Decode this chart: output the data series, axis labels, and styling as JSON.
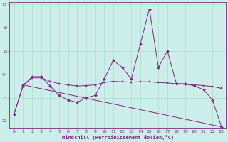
{
  "xlabel": "Windchill (Refroidissement éolien,°C)",
  "background_color": "#cceee8",
  "line_color": "#882288",
  "grid_color": "#aaddcc",
  "xlim": [
    -0.5,
    23.5
  ],
  "ylim": [
    11.7,
    17.1
  ],
  "yticks": [
    12,
    13,
    14,
    15,
    16,
    17
  ],
  "xticks": [
    0,
    1,
    2,
    3,
    4,
    5,
    6,
    7,
    8,
    9,
    10,
    11,
    12,
    13,
    14,
    15,
    16,
    17,
    18,
    19,
    20,
    21,
    22,
    23
  ],
  "series_zigzag": {
    "x": [
      0,
      1,
      2,
      3,
      4,
      5,
      6,
      7,
      8,
      9,
      10,
      11,
      12,
      13,
      14,
      15,
      16,
      17,
      18,
      19,
      20,
      21,
      22,
      23
    ],
    "y": [
      12.3,
      13.5,
      13.9,
      13.9,
      13.5,
      13.1,
      12.9,
      12.8,
      13.0,
      13.1,
      13.8,
      14.6,
      14.3,
      13.8,
      15.3,
      16.8,
      14.3,
      15.0,
      13.6,
      13.6,
      13.5,
      13.35,
      12.9,
      11.75
    ]
  },
  "series_flat": {
    "x": [
      0,
      1,
      2,
      3,
      4,
      5,
      6,
      7,
      8,
      9,
      10,
      11,
      12,
      13,
      14,
      15,
      16,
      17,
      18,
      19,
      20,
      21,
      22,
      23
    ],
    "y": [
      12.3,
      13.55,
      13.85,
      13.85,
      13.7,
      13.6,
      13.55,
      13.5,
      13.52,
      13.55,
      13.65,
      13.7,
      13.68,
      13.67,
      13.68,
      13.68,
      13.65,
      13.63,
      13.6,
      13.57,
      13.55,
      13.52,
      13.48,
      13.4
    ]
  },
  "series_diagonal": {
    "x": [
      1,
      23
    ],
    "y": [
      13.55,
      11.75
    ]
  }
}
